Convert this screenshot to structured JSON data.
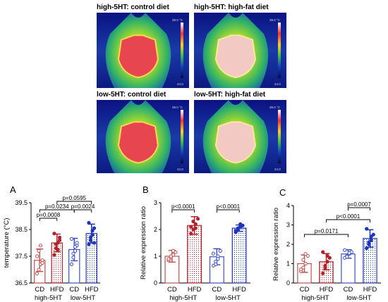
{
  "thermal_images": [
    {
      "title": "high-5HT: control diet",
      "scale_max": "39.0 °C",
      "scale_min": "24.0",
      "core": "red"
    },
    {
      "title": "high-5HT: high-fat diet",
      "scale_max": "39.0 °C",
      "scale_min": "24.0",
      "core": "pale"
    },
    {
      "title": "low-5HT: control diet",
      "scale_max": "39.0 °C",
      "scale_min": "24.0",
      "core": "red"
    },
    {
      "title": "low-5HT: high-fat diet",
      "scale_max": "39.0 °C",
      "scale_min": "24.0",
      "core": "pale"
    }
  ],
  "colors": {
    "cd_red": "#c0504d",
    "hfd_red": "#b2222a",
    "cd_blue": "#3a4fc4",
    "hfd_blue": "#1f35b8"
  },
  "chart_data": [
    {
      "panel": "A",
      "type": "bar",
      "categories": [
        "CD",
        "HFD",
        "CD",
        "HFD"
      ],
      "groups": [
        "high-5HT",
        "low-5HT"
      ],
      "ylabel": "temperature (°C)",
      "ylim": [
        36.5,
        39.5
      ],
      "yticks": [
        "36.5",
        "37.5",
        "38.5",
        "39.5"
      ],
      "values": [
        37.35,
        38.0,
        37.75,
        38.35
      ],
      "errors": [
        0.42,
        0.33,
        0.42,
        0.35
      ],
      "points": [
        [
          36.85,
          37.0,
          37.2,
          37.35,
          37.5,
          37.7,
          37.9,
          37.25
        ],
        [
          37.55,
          37.8,
          38.0,
          38.2,
          38.35,
          37.95,
          37.75,
          38.1
        ],
        [
          37.2,
          37.45,
          37.7,
          37.9,
          38.15,
          37.6,
          37.85,
          38.0
        ],
        [
          37.95,
          38.1,
          38.3,
          38.55,
          38.75,
          38.2,
          38.45,
          38.0
        ]
      ],
      "comparisons": [
        {
          "from": 0,
          "to": 1,
          "label": "p=0.0008"
        },
        {
          "from": 0,
          "to": 2,
          "label": "p=0.0234"
        },
        {
          "from": 2,
          "to": 3,
          "label": "p=0.0024"
        },
        {
          "from": 1,
          "to": 3,
          "label": "p=0.0595"
        }
      ]
    },
    {
      "panel": "B",
      "type": "bar",
      "categories": [
        "CD",
        "HFD",
        "CD",
        "HFD"
      ],
      "groups": [
        "high-5HT",
        "low-5HT"
      ],
      "ylabel": "Relative expression ratio",
      "ylim": [
        0,
        3
      ],
      "yticks": [
        "0",
        "1",
        "2",
        "3"
      ],
      "values": [
        1.0,
        2.15,
        0.98,
        2.05
      ],
      "errors": [
        0.22,
        0.33,
        0.3,
        0.12
      ],
      "points": [
        [
          0.85,
          0.95,
          1.05,
          1.15,
          0.9,
          1.0,
          1.2
        ],
        [
          1.85,
          2.0,
          2.2,
          2.4,
          2.1,
          2.3,
          2.05
        ],
        [
          0.65,
          0.8,
          1.0,
          1.2,
          1.1,
          0.7,
          0.9
        ],
        [
          1.9,
          2.0,
          2.1,
          2.15,
          1.95,
          2.05,
          2.2
        ]
      ],
      "comparisons": [
        {
          "from": 0,
          "to": 1,
          "label": "p<0.0001"
        },
        {
          "from": 2,
          "to": 3,
          "label": "p<0.0001"
        }
      ]
    },
    {
      "panel": "C",
      "type": "bar",
      "categories": [
        "CD",
        "HFD",
        "CD",
        "HFD"
      ],
      "groups": [
        "high-5HT",
        "low-5HT"
      ],
      "ylabel": "Relative expression ratio",
      "ylim": [
        0,
        4
      ],
      "yticks": [
        "0",
        "1",
        "2",
        "3",
        "4"
      ],
      "values": [
        1.0,
        1.1,
        1.5,
        2.3
      ],
      "errors": [
        0.45,
        0.42,
        0.22,
        0.45
      ],
      "points": [
        [
          0.6,
          0.8,
          1.0,
          1.4,
          0.7,
          1.2,
          1.5
        ],
        [
          0.5,
          0.9,
          1.1,
          1.3,
          1.6,
          0.8,
          1.4
        ],
        [
          1.3,
          1.4,
          1.5,
          1.6,
          1.7,
          1.35,
          1.55
        ],
        [
          1.8,
          2.0,
          2.2,
          2.5,
          2.8,
          2.1,
          2.4
        ]
      ],
      "comparisons": [
        {
          "from": 0,
          "to": 2,
          "label": "p=0.0171"
        },
        {
          "from": 1,
          "to": 3,
          "label": "p<0.0001"
        },
        {
          "from": 2,
          "to": 3,
          "label": "p=0.0007"
        }
      ]
    }
  ]
}
